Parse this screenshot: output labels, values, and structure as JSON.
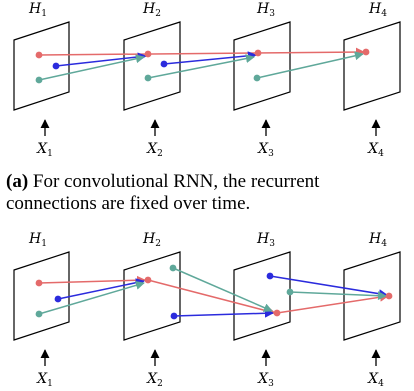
{
  "diagrams": [
    {
      "hidden_labels": [
        "H",
        "H",
        "H",
        "H"
      ],
      "input_labels": [
        "X",
        "X",
        "X",
        "X"
      ],
      "indices": [
        "1",
        "2",
        "3",
        "4"
      ],
      "colors": {
        "red": "#e46a6a",
        "blue": "#2b2bdd",
        "teal": "#5fa89a"
      }
    },
    {
      "hidden_labels": [
        "H",
        "H",
        "H",
        "H"
      ],
      "input_labels": [
        "X",
        "X",
        "X",
        "X"
      ],
      "indices": [
        "1",
        "2",
        "3",
        "4"
      ],
      "colors": {
        "red": "#e46a6a",
        "blue": "#2b2bdd",
        "teal": "#5fa89a"
      }
    }
  ],
  "caption": {
    "tag": "(a)",
    "text": "For convolutional RNN, the recurrent connections are fixed over time."
  }
}
